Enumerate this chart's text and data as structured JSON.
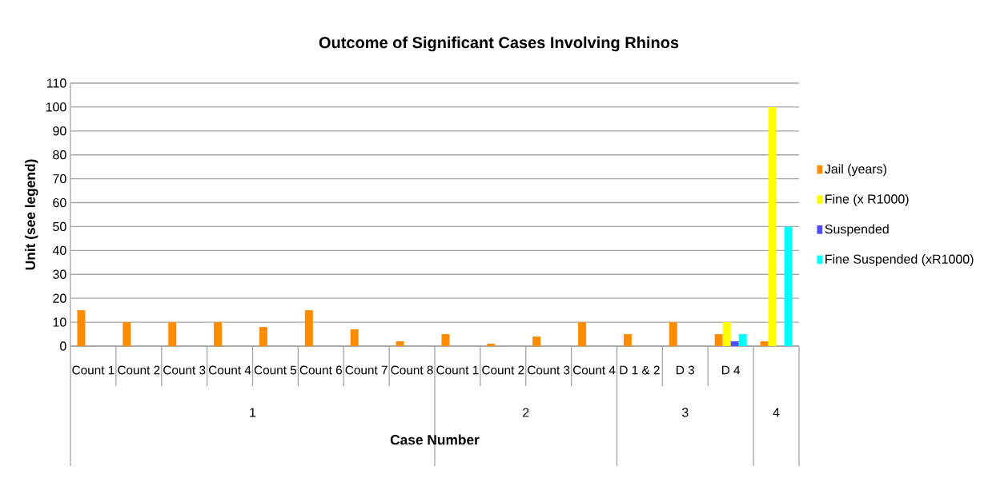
{
  "chart_data": {
    "type": "bar",
    "title": "Outcome of Significant Cases Involving Rhinos",
    "xlabel": "Case Number",
    "ylabel": "Unit (see legend)",
    "categories": [
      "Count 1",
      "Count 2",
      "Count 3",
      "Count 4",
      "Count 5",
      "Count 6",
      "Count 7",
      "Count 8",
      "Count 1",
      "Count 2",
      "Count 3",
      "Count 4",
      "D 1 & 2",
      "D 3",
      "D 4",
      null
    ],
    "series": [
      {
        "name": "Jail (years)",
        "color": "#ff8c00",
        "values": [
          15,
          10,
          10,
          10,
          8,
          15,
          7,
          2,
          5,
          1,
          4,
          10,
          5,
          10,
          5,
          2
        ]
      },
      {
        "name": "Fine (x R1000)",
        "color": "#ffff00",
        "values": [
          null,
          null,
          null,
          null,
          null,
          null,
          null,
          null,
          null,
          null,
          null,
          null,
          null,
          null,
          10,
          100
        ]
      },
      {
        "name": "Suspended",
        "color": "#4b4bff",
        "values": [
          null,
          null,
          null,
          null,
          null,
          null,
          null,
          null,
          null,
          null,
          null,
          null,
          null,
          null,
          2,
          0
        ]
      },
      {
        "name": "Fine Suspended (xR1000)",
        "color": "#00ffff",
        "values": [
          null,
          null,
          null,
          null,
          null,
          null,
          null,
          null,
          null,
          null,
          null,
          null,
          null,
          null,
          5,
          50
        ]
      }
    ],
    "annotations": [
      "1",
      "2",
      "3",
      "4"
    ],
    "ylim": [
      0,
      110
    ],
    "yticks": [
      0,
      10,
      20,
      30,
      40,
      50,
      60,
      70,
      80,
      90,
      100,
      110
    ],
    "grid": "y",
    "legend": "right"
  }
}
